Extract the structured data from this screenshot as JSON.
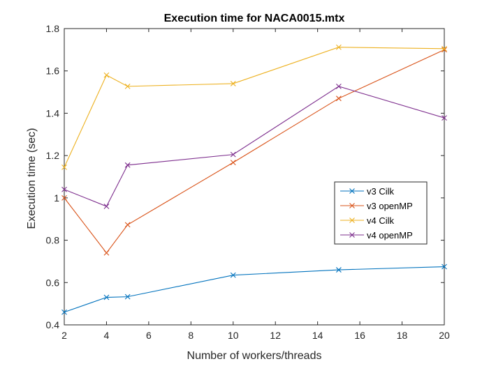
{
  "chart_data": {
    "type": "line",
    "title": "Execution time for NACA0015.mtx",
    "xlabel": "Number of workers/threads",
    "ylabel": "Execution time (sec)",
    "xlim": [
      2,
      20
    ],
    "ylim": [
      0.4,
      1.8
    ],
    "xticks": [
      2,
      4,
      6,
      8,
      10,
      12,
      14,
      16,
      18,
      20
    ],
    "yticks": [
      0.4,
      0.6,
      0.8,
      1,
      1.2,
      1.4,
      1.6,
      1.8
    ],
    "grid": false,
    "legend_position": "right-middle",
    "x": [
      2,
      4,
      5,
      10,
      15,
      20
    ],
    "series": [
      {
        "name": "v3 Cilk",
        "color": "#0072BD",
        "values": [
          0.46,
          0.53,
          0.533,
          0.635,
          0.66,
          0.675
        ]
      },
      {
        "name": "v3 openMP",
        "color": "#D95319",
        "values": [
          1.0,
          0.74,
          0.873,
          1.167,
          1.47,
          1.7
        ]
      },
      {
        "name": "v4 Cilk",
        "color": "#EDB120",
        "values": [
          1.145,
          1.58,
          1.527,
          1.54,
          1.712,
          1.705
        ]
      },
      {
        "name": "v4 openMP",
        "color": "#7E2F8E",
        "values": [
          1.04,
          0.96,
          1.155,
          1.205,
          1.527,
          1.378
        ]
      }
    ]
  }
}
